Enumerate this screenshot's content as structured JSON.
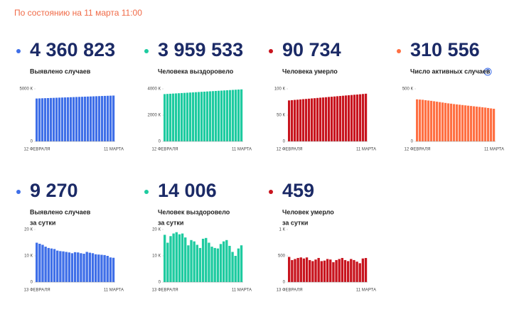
{
  "header": "По состоянию на 11 марта 11:00",
  "chart_data": [
    {
      "type": "bar",
      "title": "4 360 823",
      "subtitle": [
        "Выявлено случаев"
      ],
      "color": "#3f6fe8",
      "categories": [
        "12 ФЕВРАЛЯ",
        null,
        null,
        null,
        null,
        null,
        null,
        null,
        null,
        null,
        null,
        null,
        null,
        null,
        null,
        null,
        null,
        null,
        null,
        null,
        null,
        null,
        null,
        null,
        null,
        null,
        null,
        "11 МАРТА"
      ],
      "values": [
        4080000,
        4091000,
        4102000,
        4112000,
        4122000,
        4133000,
        4143000,
        4153000,
        4164000,
        4174000,
        4184000,
        4195000,
        4205000,
        4215000,
        4226000,
        4236000,
        4246000,
        4257000,
        4267000,
        4277000,
        4288000,
        4298000,
        4309000,
        4319000,
        4330000,
        4340000,
        4350000,
        4360823
      ],
      "ylim": [
        0,
        5000000
      ],
      "yticks": [
        0,
        {
          "value": 5000000,
          "label": "5000 К"
        }
      ]
    },
    {
      "type": "bar",
      "title": "3 959 533",
      "subtitle": [
        "Человека выздоровело"
      ],
      "color": "#1ecba0",
      "categories": [
        "12 ФЕВРАЛЯ",
        null,
        null,
        null,
        null,
        null,
        null,
        null,
        null,
        null,
        null,
        null,
        null,
        null,
        null,
        null,
        null,
        null,
        null,
        null,
        null,
        null,
        null,
        null,
        null,
        null,
        null,
        "11 МАРТА"
      ],
      "values": [
        3600000,
        3613000,
        3627000,
        3640000,
        3653000,
        3666000,
        3680000,
        3693000,
        3706000,
        3720000,
        3733000,
        3746000,
        3760000,
        3773000,
        3786000,
        3800000,
        3813000,
        3826000,
        3840000,
        3853000,
        3866000,
        3880000,
        3893000,
        3906000,
        3920000,
        3933000,
        3946000,
        3959533
      ],
      "ylim": [
        0,
        4000000
      ],
      "yticks": [
        0,
        {
          "value": 2000000,
          "label": "2000 К"
        },
        {
          "value": 4000000,
          "label": "4000 К"
        }
      ]
    },
    {
      "type": "bar",
      "title": "90 734",
      "subtitle": [
        "Человека умерло"
      ],
      "color": "#c8141e",
      "categories": [
        "12 ФЕВРАЛЯ",
        null,
        null,
        null,
        null,
        null,
        null,
        null,
        null,
        null,
        null,
        null,
        null,
        null,
        null,
        null,
        null,
        null,
        null,
        null,
        null,
        null,
        null,
        null,
        null,
        null,
        null,
        "11 МАРТА"
      ],
      "values": [
        78000,
        78500,
        79000,
        79400,
        79900,
        80400,
        80800,
        81300,
        81800,
        82200,
        82700,
        83200,
        83600,
        84100,
        84600,
        85000,
        85500,
        86000,
        86400,
        86900,
        87400,
        87800,
        88300,
        88800,
        89200,
        89700,
        90200,
        90734
      ],
      "ylim": [
        0,
        100000
      ],
      "yticks": [
        0,
        {
          "value": 50000,
          "label": "50 К"
        },
        {
          "value": 100000,
          "label": "100 К"
        }
      ]
    },
    {
      "type": "bar",
      "title": "310 556",
      "subtitle": [
        "Число активных случаев"
      ],
      "color": "#ff7043",
      "categories": [
        "12 ФЕВРАЛЯ",
        null,
        null,
        null,
        null,
        null,
        null,
        null,
        null,
        null,
        null,
        null,
        null,
        null,
        null,
        null,
        null,
        null,
        null,
        null,
        null,
        null,
        null,
        null,
        null,
        null,
        null,
        "11 МАРТА"
      ],
      "values": [
        400000,
        398000,
        396000,
        392000,
        389000,
        386000,
        382000,
        378000,
        374000,
        370000,
        366000,
        362000,
        359000,
        355000,
        352000,
        349000,
        346000,
        343000,
        340000,
        337000,
        334000,
        331000,
        328000,
        325000,
        322000,
        318000,
        314000,
        310556
      ],
      "ylim": [
        0,
        500000
      ],
      "yticks": [
        0,
        {
          "value": 500000,
          "label": "500 К"
        }
      ]
    },
    {
      "type": "bar",
      "title": "9 270",
      "subtitle": [
        "Выявлено случаев",
        "за сутки"
      ],
      "color": "#3f6fe8",
      "categories": [
        "13 ФЕВРАЛЯ",
        null,
        null,
        null,
        null,
        null,
        null,
        null,
        null,
        null,
        null,
        null,
        null,
        null,
        null,
        null,
        null,
        null,
        null,
        null,
        null,
        null,
        null,
        null,
        null,
        null,
        "11 МАРТА"
      ],
      "values": [
        15000,
        14600,
        14200,
        13500,
        13000,
        12800,
        12600,
        12000,
        11800,
        11700,
        11500,
        11300,
        11000,
        11400,
        11300,
        11000,
        10800,
        11500,
        11200,
        11000,
        10600,
        10500,
        10400,
        10300,
        10000,
        9400,
        9270
      ],
      "ylim": [
        0,
        20000
      ],
      "yticks": [
        0,
        {
          "value": 10000,
          "label": "10 К"
        },
        {
          "value": 20000,
          "label": "20 К"
        }
      ]
    },
    {
      "type": "bar",
      "title": "14 006",
      "subtitle": [
        "Человек выздоровело",
        "за сутки"
      ],
      "color": "#1ecba0",
      "categories": [
        "13 ФЕВРАЛЯ",
        null,
        null,
        null,
        null,
        null,
        null,
        null,
        null,
        null,
        null,
        null,
        null,
        null,
        null,
        null,
        null,
        null,
        null,
        null,
        null,
        null,
        null,
        null,
        null,
        null,
        "11 МАРТА"
      ],
      "values": [
        18000,
        15000,
        17500,
        18500,
        19000,
        18200,
        18500,
        17000,
        14000,
        16000,
        15500,
        14200,
        13000,
        16500,
        16800,
        15000,
        13500,
        13000,
        12800,
        14500,
        15500,
        16000,
        13800,
        11500,
        10000,
        12800,
        14006
      ],
      "ylim": [
        0,
        20000
      ],
      "yticks": [
        0,
        {
          "value": 10000,
          "label": "10 К"
        },
        {
          "value": 20000,
          "label": "20 К"
        }
      ]
    },
    {
      "type": "bar",
      "title": "459",
      "subtitle": [
        "Человек умерло",
        "за сутки"
      ],
      "color": "#c8141e",
      "categories": [
        "13 ФЕВРАЛЯ",
        null,
        null,
        null,
        null,
        null,
        null,
        null,
        null,
        null,
        null,
        null,
        null,
        null,
        null,
        null,
        null,
        null,
        null,
        null,
        null,
        null,
        null,
        null,
        null,
        null,
        "11 МАРТА"
      ],
      "values": [
        480,
        420,
        440,
        460,
        470,
        450,
        470,
        420,
        400,
        430,
        460,
        400,
        410,
        440,
        430,
        380,
        420,
        440,
        460,
        420,
        400,
        440,
        420,
        390,
        360,
        450,
        459
      ],
      "ylim": [
        0,
        1000
      ],
      "yticks": [
        0,
        500,
        {
          "value": 1000,
          "label": "1 К"
        }
      ]
    }
  ]
}
